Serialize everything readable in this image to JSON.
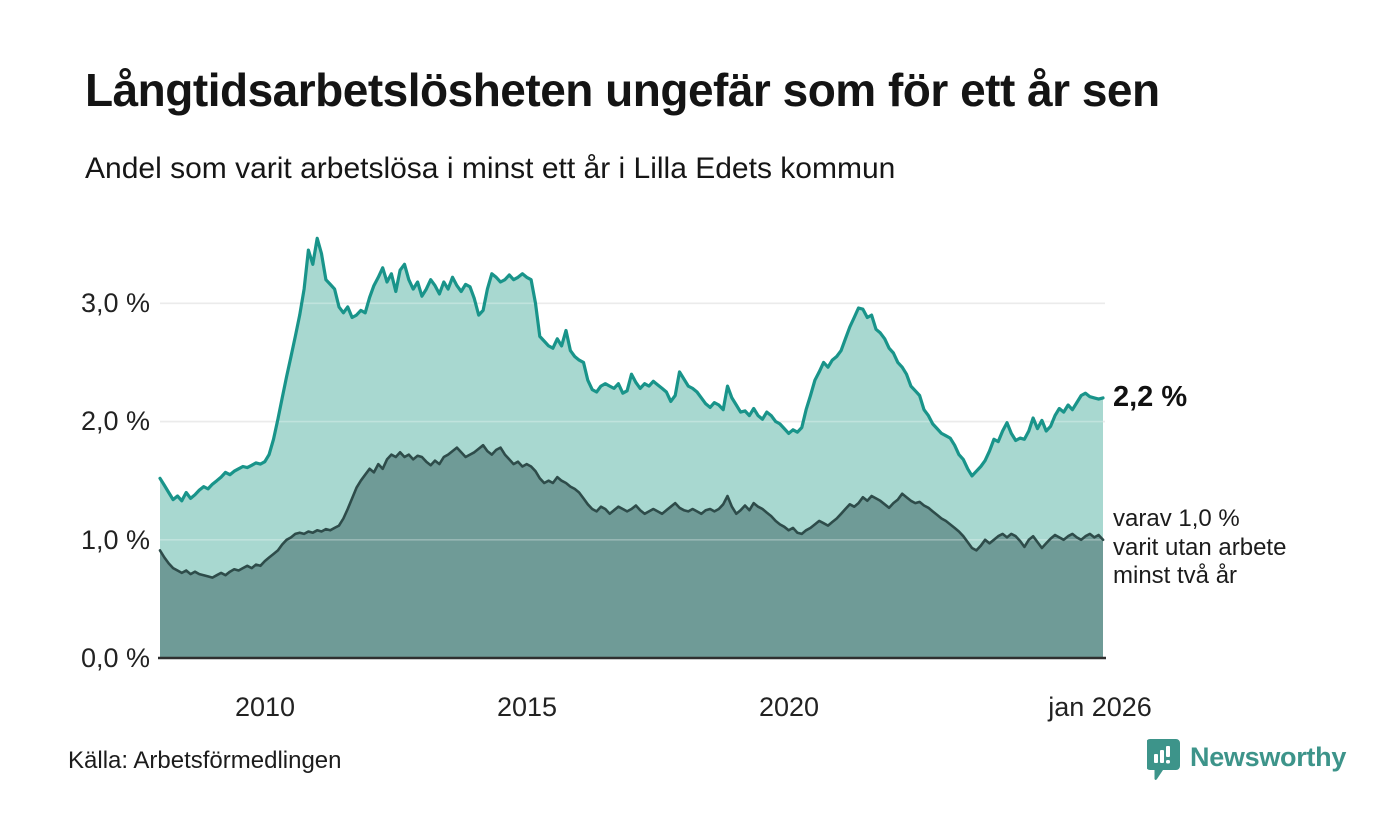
{
  "header": {
    "title": "Långtidsarbetslösheten ungefär som för ett år sen",
    "subtitle": "Andel som varit arbetslösa i minst ett år i Lilla Edets kommun"
  },
  "footer": {
    "source": "Källa: Arbetsförmedlingen",
    "brand": "Newsworthy"
  },
  "colors": {
    "series1_line": "#19948a",
    "series1_fill": "#a8d8d0",
    "series2_line": "#2e4c4a",
    "series2_fill": "#6f9b97",
    "gridline": "#e3e3e3",
    "axis": "#2f2f2f",
    "brand_teal": "#3d948a",
    "text": "#141414"
  },
  "chart_data": {
    "type": "area",
    "title": "Långtidsarbetslösheten ungefär som för ett år sen",
    "subtitle": "Andel som varit arbetslösa i minst ett år i Lilla Edets kommun",
    "unit": "%",
    "x_start": "2008-01",
    "x_end": "2026-01",
    "points_per_year": 12,
    "x_tick_labels": [
      "2010",
      "2015",
      "2020",
      "jan 2026"
    ],
    "x_tick_years": [
      2010,
      2015,
      2020,
      2026
    ],
    "y_ticks": [
      0,
      1,
      2,
      3
    ],
    "y_tick_labels": [
      "0,0 %",
      "1,0 %",
      "2,0 %",
      "3,0 %"
    ],
    "ylim": [
      0,
      3.7
    ],
    "grid": true,
    "annotations": {
      "end_value_label": "2,2 %",
      "secondary_label_lines": [
        "varav 1,0 %",
        "varit utan arbete",
        "minst två år"
      ]
    },
    "series": [
      {
        "name": "Andel arbetslösa minst ett år",
        "end_value": 2.2,
        "values": [
          1.52,
          1.46,
          1.4,
          1.34,
          1.37,
          1.33,
          1.4,
          1.35,
          1.38,
          1.42,
          1.45,
          1.43,
          1.47,
          1.5,
          1.53,
          1.57,
          1.55,
          1.58,
          1.6,
          1.62,
          1.61,
          1.63,
          1.65,
          1.64,
          1.66,
          1.72,
          1.85,
          2.02,
          2.2,
          2.38,
          2.55,
          2.72,
          2.9,
          3.12,
          3.45,
          3.33,
          3.55,
          3.42,
          3.2,
          3.16,
          3.12,
          2.97,
          2.92,
          2.97,
          2.88,
          2.9,
          2.94,
          2.92,
          3.05,
          3.15,
          3.22,
          3.3,
          3.18,
          3.25,
          3.1,
          3.28,
          3.33,
          3.2,
          3.12,
          3.18,
          3.06,
          3.12,
          3.2,
          3.15,
          3.08,
          3.18,
          3.12,
          3.22,
          3.15,
          3.1,
          3.16,
          3.14,
          3.04,
          2.9,
          2.94,
          3.12,
          3.25,
          3.22,
          3.18,
          3.2,
          3.24,
          3.2,
          3.22,
          3.25,
          3.22,
          3.2,
          3.0,
          2.72,
          2.68,
          2.64,
          2.62,
          2.7,
          2.64,
          2.77,
          2.6,
          2.55,
          2.52,
          2.5,
          2.35,
          2.27,
          2.25,
          2.3,
          2.32,
          2.3,
          2.28,
          2.32,
          2.24,
          2.26,
          2.4,
          2.33,
          2.28,
          2.32,
          2.3,
          2.34,
          2.31,
          2.28,
          2.25,
          2.17,
          2.22,
          2.42,
          2.36,
          2.3,
          2.28,
          2.25,
          2.2,
          2.15,
          2.12,
          2.16,
          2.14,
          2.1,
          2.3,
          2.2,
          2.14,
          2.08,
          2.09,
          2.05,
          2.11,
          2.05,
          2.02,
          2.08,
          2.05,
          2.0,
          1.98,
          1.94,
          1.9,
          1.93,
          1.91,
          1.95,
          2.1,
          2.22,
          2.35,
          2.42,
          2.5,
          2.46,
          2.52,
          2.55,
          2.6,
          2.7,
          2.8,
          2.88,
          2.96,
          2.95,
          2.88,
          2.9,
          2.78,
          2.75,
          2.7,
          2.62,
          2.58,
          2.5,
          2.46,
          2.4,
          2.3,
          2.26,
          2.22,
          2.1,
          2.05,
          1.98,
          1.94,
          1.9,
          1.88,
          1.86,
          1.8,
          1.72,
          1.68,
          1.6,
          1.54,
          1.58,
          1.62,
          1.67,
          1.75,
          1.85,
          1.83,
          1.92,
          1.99,
          1.9,
          1.84,
          1.86,
          1.85,
          1.92,
          2.03,
          1.94,
          2.01,
          1.92,
          1.96,
          2.05,
          2.11,
          2.08,
          2.14,
          2.1,
          2.16,
          2.22,
          2.24,
          2.21,
          2.2,
          2.19,
          2.2
        ]
      },
      {
        "name": "Andel arbetslösa minst två år",
        "end_value": 1.0,
        "values": [
          0.91,
          0.85,
          0.8,
          0.76,
          0.74,
          0.72,
          0.74,
          0.71,
          0.73,
          0.71,
          0.7,
          0.69,
          0.68,
          0.7,
          0.72,
          0.7,
          0.73,
          0.75,
          0.74,
          0.76,
          0.78,
          0.76,
          0.79,
          0.78,
          0.82,
          0.85,
          0.88,
          0.91,
          0.96,
          1.0,
          1.02,
          1.05,
          1.06,
          1.05,
          1.07,
          1.06,
          1.08,
          1.07,
          1.09,
          1.08,
          1.1,
          1.12,
          1.18,
          1.26,
          1.35,
          1.44,
          1.5,
          1.55,
          1.6,
          1.57,
          1.64,
          1.6,
          1.68,
          1.72,
          1.7,
          1.74,
          1.7,
          1.72,
          1.68,
          1.71,
          1.7,
          1.66,
          1.63,
          1.67,
          1.64,
          1.7,
          1.72,
          1.75,
          1.78,
          1.74,
          1.7,
          1.72,
          1.74,
          1.77,
          1.8,
          1.75,
          1.72,
          1.76,
          1.78,
          1.72,
          1.68,
          1.64,
          1.66,
          1.62,
          1.64,
          1.62,
          1.58,
          1.52,
          1.48,
          1.5,
          1.48,
          1.53,
          1.5,
          1.48,
          1.45,
          1.43,
          1.4,
          1.35,
          1.3,
          1.26,
          1.24,
          1.28,
          1.26,
          1.22,
          1.25,
          1.28,
          1.26,
          1.24,
          1.26,
          1.29,
          1.25,
          1.22,
          1.24,
          1.26,
          1.24,
          1.22,
          1.25,
          1.28,
          1.31,
          1.27,
          1.25,
          1.24,
          1.26,
          1.24,
          1.22,
          1.25,
          1.26,
          1.24,
          1.26,
          1.3,
          1.37,
          1.28,
          1.22,
          1.25,
          1.29,
          1.25,
          1.31,
          1.28,
          1.26,
          1.23,
          1.2,
          1.16,
          1.13,
          1.11,
          1.08,
          1.1,
          1.06,
          1.05,
          1.08,
          1.1,
          1.13,
          1.16,
          1.14,
          1.12,
          1.15,
          1.18,
          1.22,
          1.26,
          1.3,
          1.28,
          1.31,
          1.36,
          1.33,
          1.37,
          1.35,
          1.33,
          1.3,
          1.27,
          1.31,
          1.34,
          1.39,
          1.36,
          1.33,
          1.31,
          1.32,
          1.29,
          1.27,
          1.24,
          1.21,
          1.18,
          1.16,
          1.13,
          1.1,
          1.07,
          1.03,
          0.98,
          0.93,
          0.91,
          0.95,
          1.0,
          0.97,
          1.0,
          1.03,
          1.05,
          1.02,
          1.05,
          1.03,
          0.99,
          0.94,
          1.0,
          1.03,
          0.98,
          0.93,
          0.97,
          1.01,
          1.04,
          1.02,
          1.0,
          1.03,
          1.05,
          1.02,
          1.0,
          1.03,
          1.05,
          1.02,
          1.04,
          1.0
        ]
      }
    ]
  }
}
